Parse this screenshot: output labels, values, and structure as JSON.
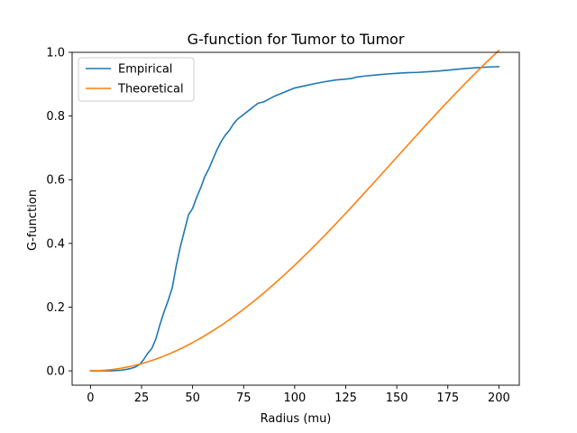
{
  "chart_data": {
    "type": "line",
    "title": "G-function for Tumor to Tumor",
    "xlabel": "Radius (mu)",
    "ylabel": "G-function",
    "xlim": [
      -9,
      210
    ],
    "ylim": [
      -0.045,
      1.0
    ],
    "xticks": [
      0,
      25,
      50,
      75,
      100,
      125,
      150,
      175,
      200
    ],
    "xtick_labels": [
      "0",
      "25",
      "50",
      "75",
      "100",
      "125",
      "150",
      "175",
      "200"
    ],
    "yticks": [
      0.0,
      0.2,
      0.4,
      0.6,
      0.8,
      1.0
    ],
    "ytick_labels": [
      "0.0",
      "0.2",
      "0.4",
      "0.6",
      "0.8",
      "1.0"
    ],
    "grid": false,
    "legend": "top-left",
    "series": [
      {
        "name": "Empirical",
        "color": "#1f77b4",
        "x": [
          0,
          5,
          10,
          15,
          18,
          20,
          22,
          24,
          26,
          28,
          30,
          32,
          34,
          36,
          38,
          40,
          42,
          44,
          46,
          48,
          50,
          52,
          54,
          56,
          58,
          60,
          62,
          64,
          66,
          68,
          70,
          72,
          75,
          78,
          80,
          82,
          85,
          88,
          90,
          95,
          100,
          105,
          110,
          115,
          120,
          125,
          128,
          130,
          135,
          140,
          145,
          150,
          155,
          160,
          165,
          170,
          175,
          180,
          185,
          190,
          195,
          200
        ],
        "y": [
          0.0,
          0.0,
          0.0,
          0.002,
          0.005,
          0.008,
          0.012,
          0.02,
          0.035,
          0.055,
          0.07,
          0.1,
          0.145,
          0.185,
          0.22,
          0.26,
          0.33,
          0.39,
          0.44,
          0.49,
          0.51,
          0.545,
          0.575,
          0.61,
          0.635,
          0.665,
          0.695,
          0.72,
          0.74,
          0.755,
          0.775,
          0.79,
          0.805,
          0.82,
          0.83,
          0.84,
          0.845,
          0.855,
          0.862,
          0.875,
          0.888,
          0.895,
          0.902,
          0.908,
          0.913,
          0.916,
          0.918,
          0.922,
          0.926,
          0.929,
          0.932,
          0.934,
          0.936,
          0.937,
          0.939,
          0.941,
          0.944,
          0.947,
          0.95,
          0.952,
          0.954,
          0.955
        ]
      },
      {
        "name": "Theoretical",
        "color": "#ff7f0e",
        "formula_note": "",
        "x": [
          0,
          5,
          10,
          15,
          20,
          25,
          30,
          35,
          40,
          45,
          50,
          55,
          60,
          65,
          70,
          75,
          80,
          85,
          90,
          95,
          100,
          105,
          110,
          115,
          120,
          125,
          130,
          135,
          140,
          145,
          150,
          155,
          160,
          165,
          170,
          175,
          180,
          185,
          190,
          195,
          200
        ],
        "y": [
          0.0,
          0.0009,
          0.0036,
          0.0082,
          0.0145,
          0.0226,
          0.0324,
          0.044,
          0.0572,
          0.0721,
          0.0886,
          0.1066,
          0.1262,
          0.1472,
          0.1697,
          0.1936,
          0.2188,
          0.2452,
          0.2729,
          0.3017,
          0.3317,
          0.3626,
          0.3945,
          0.4272,
          0.4606,
          0.4947,
          0.5293,
          0.5643,
          0.5996,
          0.6351,
          0.6707,
          0.7062,
          0.7416,
          0.7767,
          0.8114,
          0.8456,
          0.8792,
          0.9121,
          0.9443,
          0.9756,
          1.006
        ]
      }
    ]
  }
}
